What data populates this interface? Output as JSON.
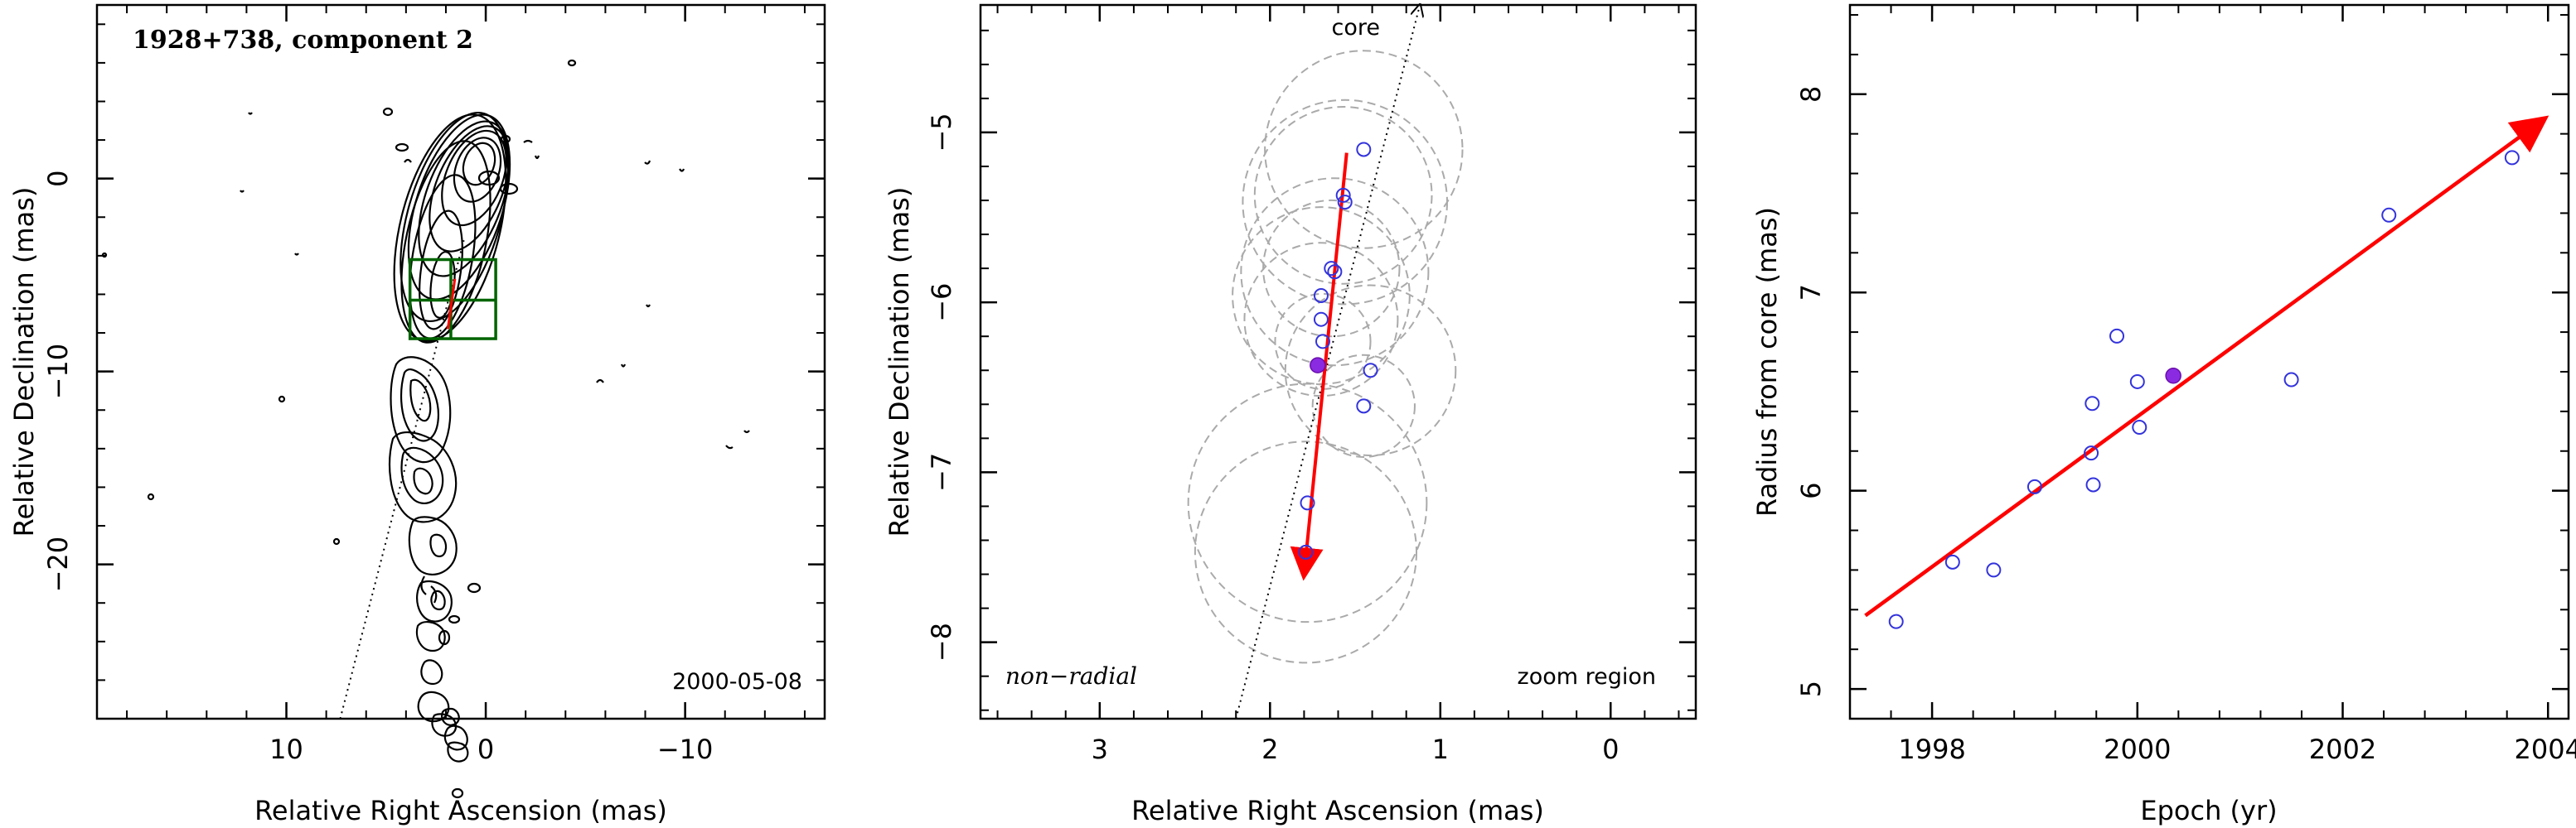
{
  "chart_data": [
    {
      "type": "contour",
      "title": "1928+738, component 2",
      "epoch_label": "2000-05-08",
      "xlabel": "Relative Right Ascension (mas)",
      "ylabel": "Relative Declination (mas)",
      "xlim": [
        19.5,
        -17
      ],
      "ylim": [
        -28,
        9
      ],
      "xticks": [
        10,
        0,
        -10
      ],
      "xtick_labels": [
        "10",
        "0",
        "−10"
      ],
      "yticks": [
        0,
        -10,
        -20
      ],
      "ytick_labels": [
        "0",
        "−10",
        "−20"
      ],
      "core_direction_line": [
        [
          7.3,
          -28
        ],
        [
          1.1,
          -3.2
        ]
      ],
      "zoom_box": {
        "x_range": [
          3.8,
          -0.5
        ],
        "y_range": [
          -8.3,
          -4.2
        ],
        "cross_x": 1.75,
        "cross_y": -6.3
      },
      "component_vector": {
        "from": [
          1.9,
          -7.8
        ],
        "to": [
          1.55,
          -5.2
        ],
        "color": "#ff0000"
      },
      "colors": {
        "contours": "#000000",
        "box": "#006400",
        "vector": "#ff0000"
      }
    },
    {
      "type": "scatter",
      "title": "",
      "xlabel": "Relative Right Ascension (mas)",
      "ylabel": "Relative Declination (mas)",
      "xlim": [
        3.7,
        -0.5
      ],
      "ylim": [
        -8.45,
        -4.25
      ],
      "xticks": [
        3,
        2,
        1,
        0
      ],
      "xtick_labels": [
        "3",
        "2",
        "1",
        "0"
      ],
      "yticks": [
        -5,
        -6,
        -7,
        -8
      ],
      "ytick_labels": [
        "−5",
        "−6",
        "−7",
        "−8"
      ],
      "annotations": {
        "core": "core",
        "motion_type": "non−radial",
        "region": "zoom region"
      },
      "points": [
        {
          "x": 1.45,
          "y": -5.1
        },
        {
          "x": 1.57,
          "y": -5.37
        },
        {
          "x": 1.56,
          "y": -5.41
        },
        {
          "x": 1.64,
          "y": -5.8
        },
        {
          "x": 1.62,
          "y": -5.82
        },
        {
          "x": 1.7,
          "y": -5.96
        },
        {
          "x": 1.7,
          "y": -6.1
        },
        {
          "x": 1.69,
          "y": -6.23
        },
        {
          "x": 1.41,
          "y": -6.4
        },
        {
          "x": 1.45,
          "y": -6.61
        },
        {
          "x": 1.78,
          "y": -7.18
        },
        {
          "x": 1.79,
          "y": -7.47
        }
      ],
      "highlight_point": {
        "x": 1.72,
        "y": -6.37
      },
      "beam_circles": [
        {
          "x": 1.45,
          "y": -5.1,
          "r": 0.58
        },
        {
          "x": 1.57,
          "y": -5.37,
          "r": 0.52
        },
        {
          "x": 1.56,
          "y": -5.41,
          "r": 0.6
        },
        {
          "x": 1.64,
          "y": -5.8,
          "r": 0.4
        },
        {
          "x": 1.62,
          "y": -5.82,
          "r": 0.55
        },
        {
          "x": 1.7,
          "y": -5.96,
          "r": 0.52
        },
        {
          "x": 1.7,
          "y": -6.1,
          "r": 0.45
        },
        {
          "x": 1.69,
          "y": -6.23,
          "r": 0.28
        },
        {
          "x": 1.41,
          "y": -6.4,
          "r": 0.5
        },
        {
          "x": 1.45,
          "y": -6.61,
          "r": 0.3
        },
        {
          "x": 1.78,
          "y": -7.18,
          "r": 0.7
        },
        {
          "x": 1.79,
          "y": -7.47,
          "r": 0.65
        }
      ],
      "core_direction_line": [
        [
          2.2,
          -8.45
        ],
        [
          1.12,
          -4.25
        ]
      ],
      "motion_vector": {
        "from": [
          1.55,
          -5.12
        ],
        "to": [
          1.8,
          -7.6
        ],
        "color": "#ff0000"
      },
      "colors": {
        "points": "#3333dd",
        "highlight": "#8a2be2",
        "circles": "#aaaaaa",
        "vector": "#ff0000"
      }
    },
    {
      "type": "scatter",
      "title": "",
      "xlabel": "Epoch (yr)",
      "ylabel": "Radius from core (mas)",
      "xlim": [
        1997.2,
        2004.2
      ],
      "ylim": [
        4.85,
        8.45
      ],
      "xticks": [
        1998,
        2000,
        2002,
        2004
      ],
      "xtick_labels": [
        "1998",
        "2000",
        "2002",
        "2004"
      ],
      "yticks": [
        5,
        6,
        7,
        8
      ],
      "ytick_labels": [
        "5",
        "6",
        "7",
        "8"
      ],
      "points": [
        {
          "x": 1997.65,
          "y": 5.34
        },
        {
          "x": 1998.2,
          "y": 5.64
        },
        {
          "x": 1998.6,
          "y": 5.6
        },
        {
          "x": 1999.0,
          "y": 6.02
        },
        {
          "x": 1999.57,
          "y": 6.03
        },
        {
          "x": 1999.55,
          "y": 6.19
        },
        {
          "x": 1999.56,
          "y": 6.44
        },
        {
          "x": 1999.8,
          "y": 6.78
        },
        {
          "x": 2000.0,
          "y": 6.55
        },
        {
          "x": 2000.02,
          "y": 6.32
        },
        {
          "x": 2001.5,
          "y": 6.56
        },
        {
          "x": 2002.45,
          "y": 7.39
        },
        {
          "x": 2003.65,
          "y": 7.68
        }
      ],
      "highlight_point": {
        "x": 2000.35,
        "y": 6.58
      },
      "fit_line": {
        "from": [
          1997.35,
          5.37
        ],
        "to": [
          2003.95,
          7.87
        ],
        "color": "#ff0000"
      },
      "colors": {
        "points": "#3333dd",
        "highlight": "#8a2be2",
        "fit": "#ff0000"
      }
    }
  ]
}
